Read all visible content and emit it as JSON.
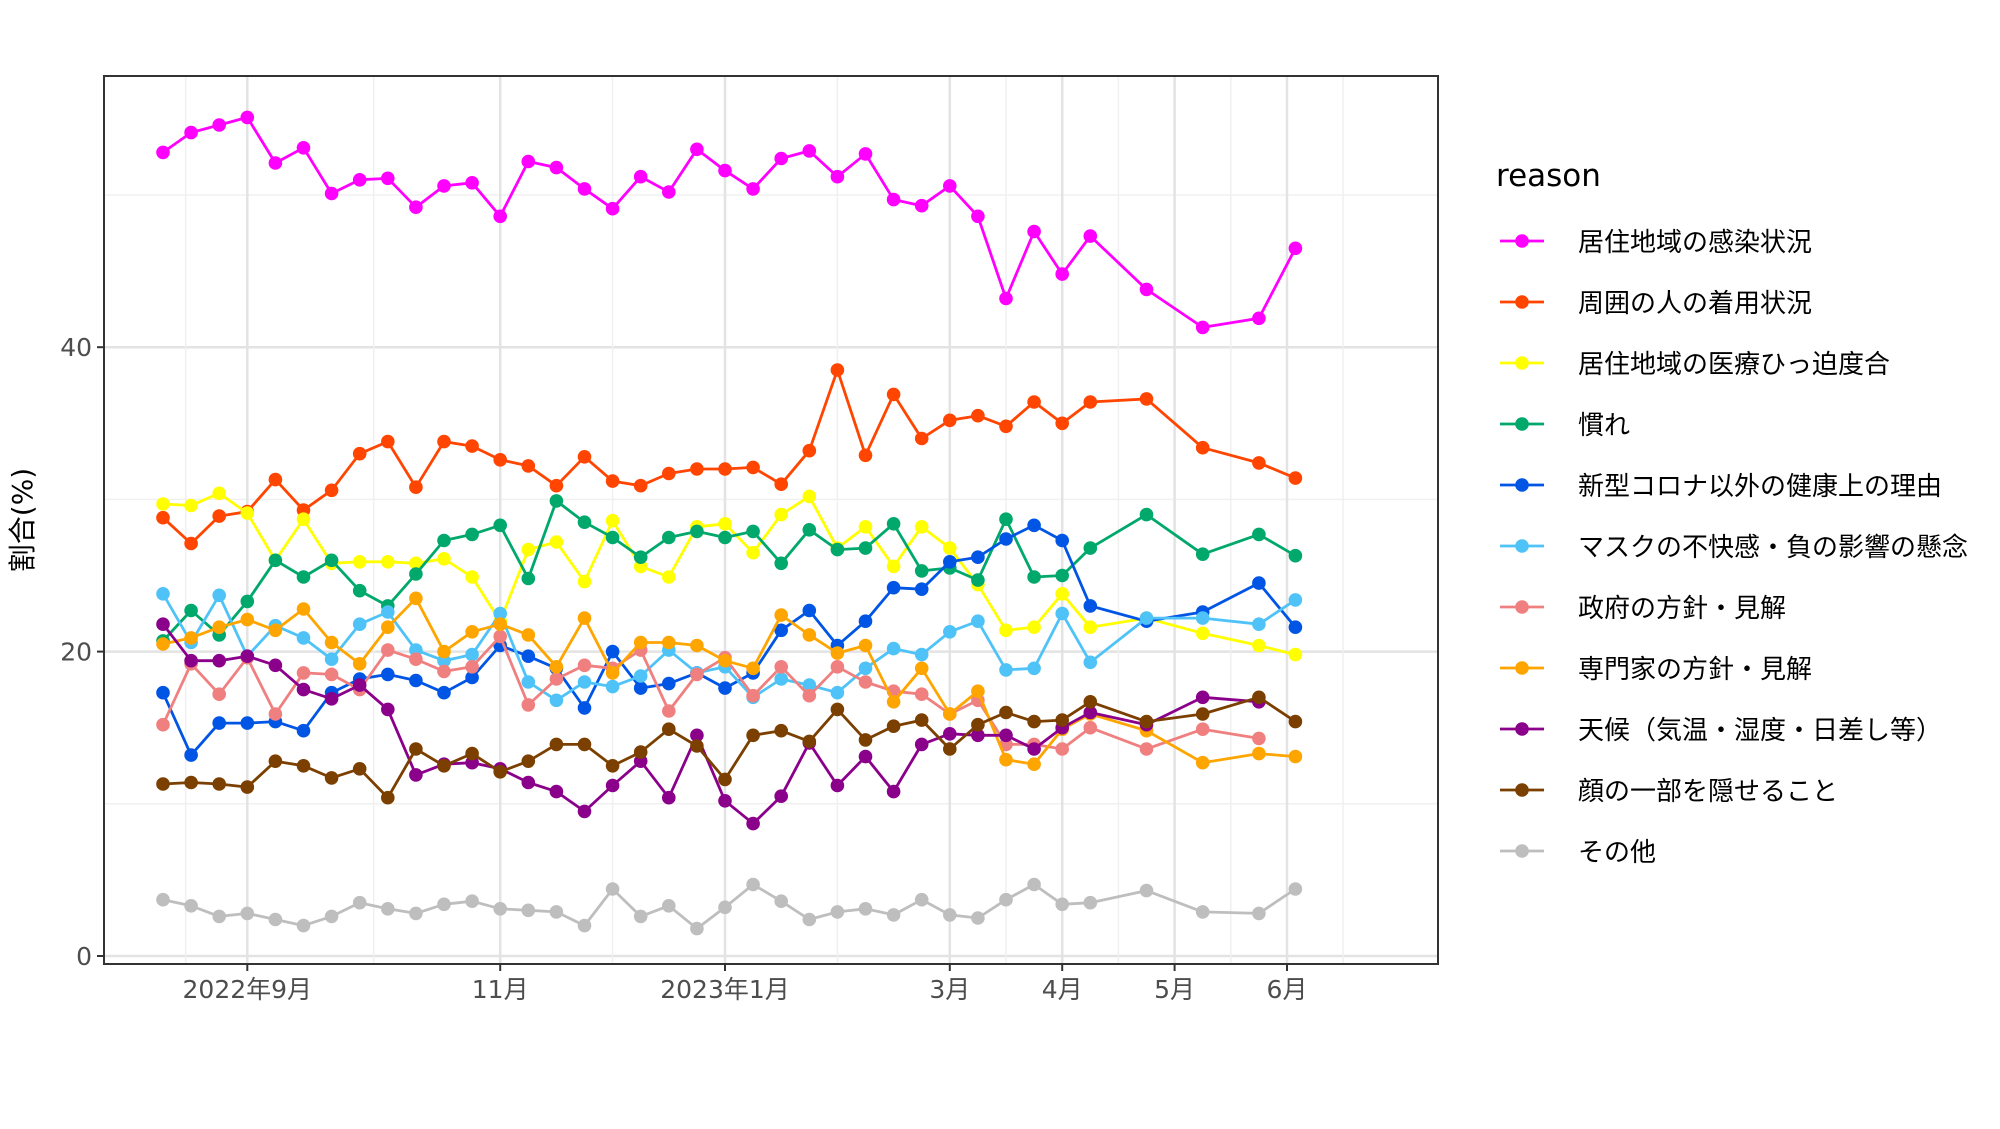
{
  "chart_data": {
    "type": "line",
    "xlabel": "",
    "ylabel": "割合(%)",
    "ylim": [
      0,
      57
    ],
    "y_ticks": [
      0,
      20,
      40
    ],
    "grid": true,
    "x_ticks": [
      {
        "label": "2022年9月",
        "index": 3
      },
      {
        "label": "11月",
        "index": 12
      },
      {
        "label": "2023年1月",
        "index": 20
      },
      {
        "label": "3月",
        "index": 28
      },
      {
        "label": "4月",
        "index": 32
      },
      {
        "label": "5月",
        "index": 36
      },
      {
        "label": "6月",
        "index": 40
      }
    ],
    "x_positions": [
      0,
      1,
      2,
      3,
      4,
      5,
      6,
      7,
      8,
      9,
      10,
      11,
      12,
      13,
      14,
      15,
      16,
      17,
      18,
      19,
      20,
      21,
      22,
      23,
      24,
      25,
      26,
      27,
      28,
      29,
      30,
      31,
      32,
      33,
      35,
      37,
      39,
      40.3,
      42,
      43.1
    ],
    "legend": {
      "title": "reason",
      "position": "right"
    },
    "series": [
      {
        "name": "居住地域の感染状況",
        "color": "#FF00FF",
        "values": [
          52.8,
          54.1,
          54.6,
          55.1,
          52.1,
          53.1,
          50.1,
          51.0,
          51.1,
          49.2,
          50.6,
          50.8,
          48.6,
          52.2,
          51.8,
          50.4,
          49.1,
          51.2,
          50.2,
          53.0,
          51.6,
          50.4,
          52.4,
          52.9,
          51.2,
          52.7,
          49.7,
          49.3,
          50.6,
          48.6,
          43.2,
          47.6,
          44.8,
          47.3,
          43.8,
          41.3,
          41.9,
          46.5,
          null,
          null
        ]
      },
      {
        "name": "周囲の人の着用状況",
        "color": "#FF4500",
        "values": [
          28.8,
          27.1,
          28.9,
          29.2,
          31.3,
          29.3,
          30.6,
          33.0,
          33.8,
          30.8,
          33.8,
          33.5,
          32.6,
          32.2,
          30.9,
          32.8,
          31.2,
          30.9,
          31.7,
          32.0,
          32.0,
          32.1,
          31.0,
          33.2,
          38.5,
          32.9,
          36.9,
          34.0,
          35.2,
          35.5,
          34.8,
          36.4,
          35.0,
          36.4,
          36.6,
          33.4,
          32.4,
          31.4,
          null,
          null
        ]
      },
      {
        "name": "居住地域の医療ひっ迫度合",
        "color": "#FFFF00",
        "values": [
          29.7,
          29.6,
          30.4,
          29.1,
          26.0,
          28.7,
          25.8,
          25.9,
          25.9,
          25.8,
          26.1,
          24.9,
          22.0,
          26.7,
          27.2,
          24.6,
          28.6,
          25.6,
          24.9,
          28.2,
          28.4,
          26.5,
          29.0,
          30.2,
          26.8,
          28.2,
          25.6,
          28.2,
          26.8,
          24.4,
          21.4,
          21.6,
          23.8,
          21.6,
          22.2,
          21.2,
          20.4,
          19.8,
          null,
          null
        ]
      },
      {
        "name": "慣れ",
        "color": "#00A86B",
        "values": [
          20.7,
          22.7,
          21.1,
          23.3,
          26.0,
          24.9,
          26.0,
          24.0,
          23.0,
          25.1,
          27.3,
          27.7,
          28.3,
          24.8,
          29.9,
          28.5,
          27.5,
          26.2,
          27.5,
          27.9,
          27.5,
          27.9,
          25.8,
          28.0,
          26.7,
          26.8,
          28.4,
          25.3,
          25.5,
          24.7,
          28.7,
          24.9,
          25.0,
          26.8,
          29.0,
          26.4,
          27.7,
          26.3,
          null,
          null
        ]
      },
      {
        "name": "新型コロナ以外の健康上の理由",
        "color": "#0055E5",
        "values": [
          17.3,
          13.2,
          15.3,
          15.3,
          15.4,
          14.8,
          17.3,
          18.2,
          18.5,
          18.1,
          17.3,
          18.3,
          20.4,
          19.7,
          18.9,
          16.3,
          20.0,
          17.6,
          17.9,
          18.6,
          17.6,
          18.6,
          21.4,
          22.7,
          20.4,
          22.0,
          24.2,
          24.1,
          25.9,
          26.2,
          27.4,
          28.3,
          27.3,
          23.0,
          22.0,
          22.6,
          24.5,
          21.6,
          null,
          null
        ]
      },
      {
        "name": "マスクの不快感・負の影響の懸念",
        "color": "#4FC3F7",
        "values": [
          23.8,
          20.6,
          23.7,
          19.7,
          21.7,
          20.9,
          19.5,
          21.8,
          22.6,
          20.1,
          19.4,
          19.8,
          22.5,
          18.0,
          16.8,
          18.0,
          17.7,
          18.4,
          20.1,
          18.6,
          19.0,
          17.0,
          18.2,
          17.8,
          17.3,
          18.9,
          20.2,
          19.8,
          21.3,
          22.0,
          18.8,
          18.9,
          22.5,
          19.3,
          22.2,
          22.2,
          21.8,
          23.4,
          null,
          null
        ]
      },
      {
        "name": "政府の方針・見解",
        "color": "#F08080",
        "values": [
          15.2,
          19.2,
          17.2,
          19.6,
          15.9,
          18.6,
          18.5,
          17.5,
          20.1,
          19.5,
          18.7,
          19.0,
          21.0,
          16.5,
          18.2,
          19.1,
          18.9,
          20.1,
          16.1,
          18.5,
          19.6,
          17.1,
          19.0,
          17.1,
          19.0,
          18.0,
          17.4,
          17.2,
          15.9,
          16.8,
          13.9,
          13.9,
          13.6,
          15.0,
          13.6,
          14.9,
          14.3,
          null,
          null,
          null
        ]
      },
      {
        "name": "専門家の方針・見解",
        "color": "#FFA500",
        "values": [
          20.5,
          20.9,
          21.6,
          22.1,
          21.4,
          22.8,
          20.6,
          19.2,
          21.6,
          23.5,
          20.0,
          21.3,
          21.8,
          21.1,
          19.0,
          22.2,
          18.6,
          20.6,
          20.6,
          20.4,
          19.4,
          18.9,
          22.4,
          21.1,
          19.9,
          20.4,
          16.7,
          18.9,
          15.9,
          17.4,
          12.9,
          12.6,
          14.9,
          15.9,
          14.8,
          12.7,
          13.3,
          13.1,
          null,
          null
        ]
      },
      {
        "name": "天候（気温・湿度・日差し等）",
        "color": "#8B008B",
        "values": [
          21.8,
          19.4,
          19.4,
          19.7,
          19.1,
          17.5,
          16.9,
          17.8,
          16.2,
          11.9,
          12.6,
          12.7,
          12.3,
          11.4,
          10.8,
          9.5,
          11.2,
          12.8,
          10.4,
          14.5,
          10.2,
          8.7,
          10.5,
          14.0,
          11.2,
          13.1,
          10.8,
          13.9,
          14.6,
          14.5,
          14.5,
          13.6,
          15.0,
          16.0,
          15.2,
          17.0,
          16.7,
          null,
          null,
          null
        ]
      },
      {
        "name": "顔の一部を隠せること",
        "color": "#7B3F00",
        "values": [
          11.3,
          11.4,
          11.3,
          11.1,
          12.8,
          12.5,
          11.7,
          12.3,
          10.4,
          13.6,
          12.5,
          13.3,
          12.1,
          12.8,
          13.9,
          13.9,
          12.5,
          13.4,
          14.9,
          13.8,
          11.6,
          14.5,
          14.8,
          14.1,
          16.2,
          14.2,
          15.1,
          15.5,
          13.6,
          15.2,
          16.0,
          15.4,
          15.5,
          16.7,
          15.4,
          15.9,
          17.0,
          15.4,
          null,
          null
        ]
      },
      {
        "name": "その他",
        "color": "#BEBEBE",
        "values": [
          3.7,
          3.3,
          2.6,
          2.8,
          2.4,
          2.0,
          2.6,
          3.5,
          3.1,
          2.8,
          3.4,
          3.6,
          3.1,
          3.0,
          2.9,
          2.0,
          4.4,
          2.6,
          3.3,
          1.8,
          3.2,
          4.7,
          3.6,
          2.4,
          2.9,
          3.1,
          2.7,
          3.7,
          2.7,
          2.5,
          3.7,
          4.7,
          3.4,
          3.5,
          4.3,
          2.9,
          2.8,
          4.4,
          null,
          null
        ]
      }
    ]
  }
}
